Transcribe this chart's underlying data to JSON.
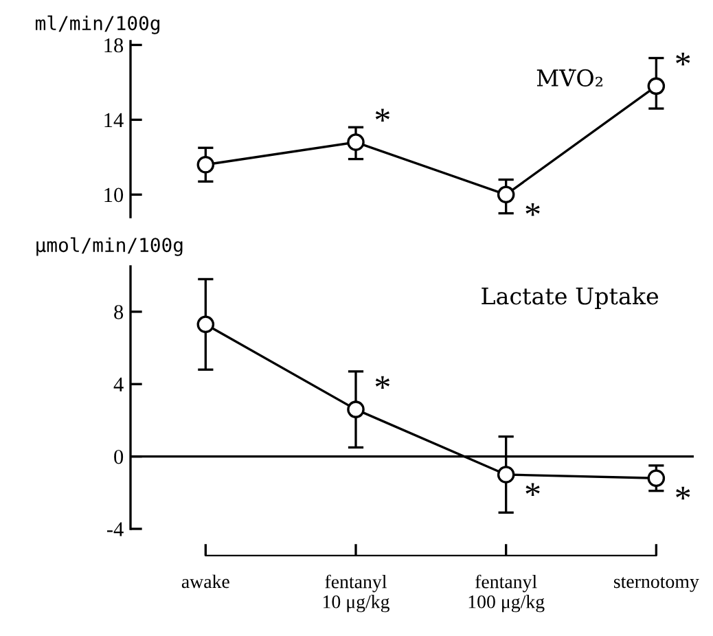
{
  "chart_data": [
    {
      "type": "line",
      "categories": [
        "awake",
        "fentanyl\n10 μg/kg",
        "fentanyl\n100 μg/kg",
        "sternotomy"
      ],
      "values": [
        11.6,
        12.8,
        10.0,
        15.8
      ],
      "errors": [
        [
          10.7,
          12.5
        ],
        [
          11.9,
          13.6
        ],
        [
          9.0,
          10.8
        ],
        [
          14.6,
          17.3
        ]
      ],
      "color": "#000000",
      "marker": "circle",
      "ylabel": "ml/min/100g",
      "ylim": [
        8.8,
        18.2
      ],
      "yticks": [
        10,
        14,
        18
      ],
      "tick_labels": "y",
      "grid": false,
      "annotations": [
        "MV̇O₂",
        {
          "text": "*",
          "x": "fentanyl\n10 μg/kg",
          "y": 12.8
        },
        {
          "text": "*",
          "x": "fentanyl\n100 μg/kg",
          "y": 10.0
        },
        {
          "text": "*",
          "x": "sternotomy",
          "y": 15.8
        }
      ]
    },
    {
      "type": "line",
      "categories": [
        "awake",
        "fentanyl\n10 μg/kg",
        "fentanyl\n100 μg/kg",
        "sternotomy"
      ],
      "values": [
        7.3,
        2.6,
        -1.0,
        -1.2
      ],
      "errors": [
        [
          4.8,
          9.8
        ],
        [
          0.5,
          4.7
        ],
        [
          -3.1,
          1.1
        ],
        [
          -1.9,
          -0.5
        ]
      ],
      "color": "#000000",
      "marker": "circle",
      "ylabel": "μmol/min/100g",
      "ylim": [
        -4,
        10.5
      ],
      "yticks": [
        -4,
        0,
        4,
        8
      ],
      "grid": false,
      "ref_lines": [
        {
          "axis": "y",
          "value": 0
        }
      ],
      "annotations": [
        "Lactate Uptake",
        {
          "text": "*",
          "x": "fentanyl\n10 μg/kg",
          "y": 2.6
        },
        {
          "text": "*",
          "x": "fentanyl\n100 μg/kg",
          "y": -1.0
        },
        {
          "text": "*",
          "x": "sternotomy",
          "y": -1.2
        }
      ]
    }
  ]
}
